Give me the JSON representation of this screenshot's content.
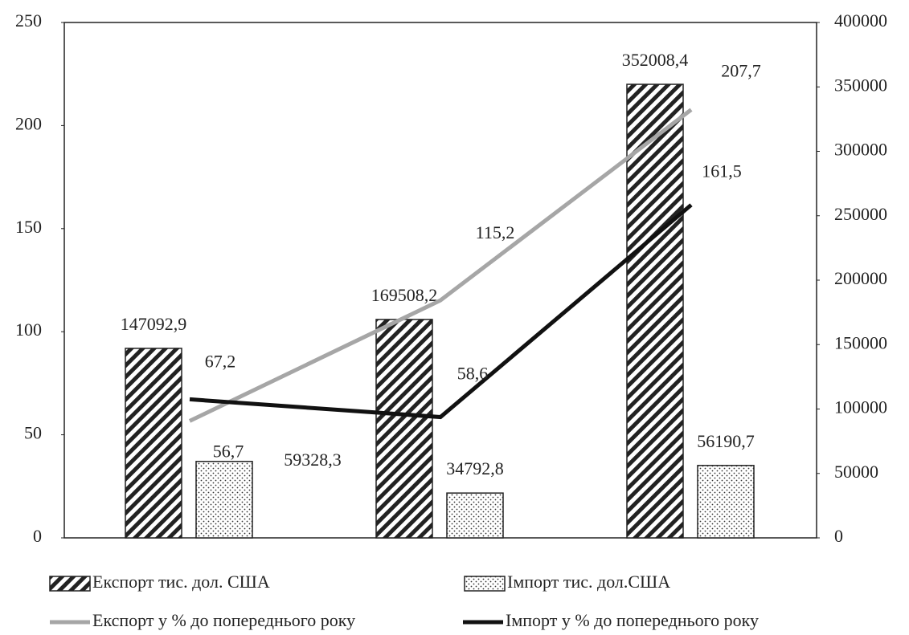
{
  "chart_data": {
    "type": "bar",
    "categories": [
      null,
      null,
      null
    ],
    "series": [
      {
        "name": "Експорт тис. дол. США",
        "type": "bar",
        "axis": "y2",
        "color": "#222222",
        "pattern": "hatch",
        "values": [
          147092.9,
          169508.2,
          352008.4
        ],
        "value_labels": [
          "147092,9",
          "169508,2",
          "352008,4"
        ]
      },
      {
        "name": "Імпорт тис. дол.США",
        "type": "bar",
        "axis": "y2",
        "color": "#222222",
        "pattern": "dots",
        "values": [
          59328.3,
          34792.8,
          56190.7
        ],
        "value_labels": [
          "59328,3",
          "34792,8",
          "56190,7"
        ]
      },
      {
        "name": "Експорт у % до попереднього року",
        "type": "line",
        "axis": "y",
        "color": "#a6a6a6",
        "values": [
          56.7,
          115.2,
          207.7
        ],
        "value_labels": [
          "56,7",
          "115,2",
          "207,7"
        ]
      },
      {
        "name": "Імпорт у % до попереднього року",
        "type": "line",
        "axis": "y",
        "color": "#111111",
        "values": [
          67.2,
          58.6,
          161.5
        ],
        "value_labels": [
          "67,2",
          "58,6",
          "161,5"
        ]
      }
    ],
    "ylim": [
      0,
      250
    ],
    "yticks": [
      0,
      50,
      100,
      150,
      200,
      250
    ],
    "y2lim": [
      0,
      400000
    ],
    "y2ticks": [
      0,
      50000,
      100000,
      150000,
      200000,
      250000,
      300000,
      350000,
      400000
    ],
    "grid": false,
    "legend": "bottom"
  }
}
